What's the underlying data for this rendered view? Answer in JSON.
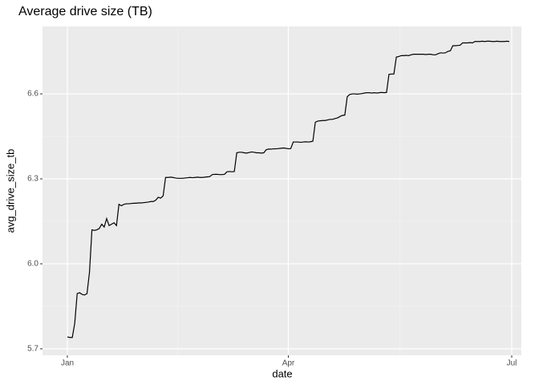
{
  "chart_data": {
    "type": "line",
    "title": "Average drive size (TB)",
    "x_label": "date",
    "y_label": "avg_drive_size_tb",
    "categories": [
      "Jan",
      null,
      null,
      null,
      null,
      null,
      null,
      null,
      null,
      null,
      null,
      null,
      null,
      null,
      null,
      null,
      null,
      null,
      null,
      null,
      null,
      null,
      null,
      null,
      null,
      null,
      null,
      null,
      null,
      null,
      null,
      null,
      null,
      null,
      null,
      null,
      null,
      null,
      null,
      null,
      null,
      null,
      null,
      null,
      null,
      null,
      null,
      null,
      null,
      null,
      null,
      null,
      null,
      null,
      null,
      null,
      null,
      null,
      null,
      null,
      null,
      null,
      null,
      null,
      null,
      null,
      null,
      null,
      null,
      null,
      null,
      null,
      null,
      null,
      null,
      null,
      null,
      null,
      null,
      null,
      null,
      null,
      null,
      null,
      null,
      null,
      null,
      null,
      null,
      null,
      "Apr",
      null,
      null,
      null,
      null,
      null,
      null,
      null,
      null,
      null,
      null,
      null,
      null,
      null,
      null,
      null,
      null,
      null,
      null,
      null,
      null,
      null,
      null,
      null,
      null,
      null,
      null,
      null,
      null,
      null,
      null,
      null,
      null,
      null,
      null,
      null,
      null,
      null,
      null,
      null,
      null,
      null,
      null,
      null,
      null,
      null,
      null,
      null,
      null,
      null,
      null,
      null,
      null,
      null,
      null,
      null,
      null,
      null,
      null,
      null,
      null,
      null,
      null,
      null,
      null,
      null,
      null,
      null,
      null,
      null,
      null,
      null,
      null,
      null,
      null,
      null,
      null,
      null,
      null,
      null,
      null,
      null,
      null,
      null,
      null,
      null,
      null,
      null,
      null,
      null,
      null,
      "Jul"
    ],
    "series": [
      {
        "name": "avg_drive_size_tb",
        "color": "#000000",
        "values": [
          5.742,
          5.74,
          5.74,
          5.79,
          5.895,
          5.898,
          5.892,
          5.89,
          5.895,
          5.97,
          6.12,
          6.118,
          6.12,
          6.125,
          6.14,
          6.13,
          6.16,
          6.135,
          6.14,
          6.145,
          6.135,
          6.21,
          6.205,
          6.21,
          6.212,
          6.212,
          6.213,
          6.214,
          6.214,
          6.215,
          6.215,
          6.216,
          6.217,
          6.218,
          6.22,
          6.22,
          6.225,
          6.235,
          6.232,
          6.24,
          6.305,
          6.305,
          6.306,
          6.305,
          6.303,
          6.302,
          6.302,
          6.302,
          6.303,
          6.304,
          6.305,
          6.304,
          6.305,
          6.306,
          6.305,
          6.305,
          6.306,
          6.307,
          6.308,
          6.315,
          6.316,
          6.316,
          6.315,
          6.315,
          6.316,
          6.325,
          6.326,
          6.325,
          6.326,
          6.392,
          6.394,
          6.394,
          6.392,
          6.391,
          6.393,
          6.395,
          6.394,
          6.392,
          6.392,
          6.391,
          6.392,
          6.403,
          6.405,
          6.405,
          6.406,
          6.406,
          6.407,
          6.408,
          6.409,
          6.408,
          6.406,
          6.407,
          6.43,
          6.43,
          6.43,
          6.429,
          6.43,
          6.431,
          6.43,
          6.431,
          6.433,
          6.5,
          6.504,
          6.505,
          6.506,
          6.506,
          6.508,
          6.51,
          6.51,
          6.513,
          6.515,
          6.52,
          6.524,
          6.525,
          6.59,
          6.598,
          6.6,
          6.6,
          6.599,
          6.6,
          6.601,
          6.603,
          6.604,
          6.604,
          6.603,
          6.604,
          6.603,
          6.604,
          6.605,
          6.604,
          6.605,
          6.669,
          6.67,
          6.67,
          6.73,
          6.732,
          6.735,
          6.735,
          6.736,
          6.735,
          6.738,
          6.74,
          6.74,
          6.74,
          6.74,
          6.74,
          6.739,
          6.74,
          6.74,
          6.738,
          6.738,
          6.742,
          6.745,
          6.744,
          6.745,
          6.75,
          6.752,
          6.77,
          6.77,
          6.771,
          6.772,
          6.78,
          6.78,
          6.78,
          6.781,
          6.78,
          6.785,
          6.785,
          6.785,
          6.786,
          6.785,
          6.786,
          6.786,
          6.785,
          6.785,
          6.786,
          6.785,
          6.785,
          6.785,
          6.786,
          6.785,
          null
        ]
      }
    ],
    "ylim": [
      5.677,
      6.838
    ],
    "yticks": [
      5.7,
      {
        "value": 6,
        "label": "6.0"
      },
      6.3,
      6.6
    ],
    "grid": true
  }
}
